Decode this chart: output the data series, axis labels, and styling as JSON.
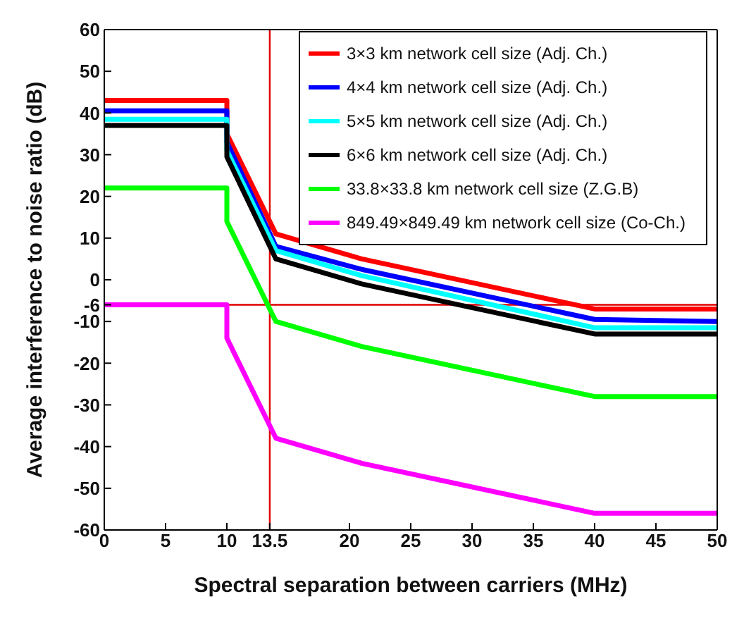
{
  "chart_data": {
    "type": "line",
    "xlabel": "Spectral separation between carriers (MHz)",
    "ylabel": "Average interference to noise ratio (dB)",
    "xlim": [
      0,
      50
    ],
    "xticks": [
      0,
      5,
      10,
      13.5,
      20,
      25,
      30,
      35,
      40,
      45,
      50
    ],
    "ylim": [
      -60,
      60
    ],
    "yticks": [
      -60,
      -50,
      -40,
      -30,
      -20,
      -10,
      -6,
      0,
      10,
      20,
      30,
      40,
      50,
      60
    ],
    "grid": false,
    "legend": "top right",
    "marker": "none",
    "line_style": "solid",
    "ref_lines": [
      {
        "axis": "x",
        "value": 13.5,
        "color": "#e00000"
      },
      {
        "axis": "y",
        "value": -6,
        "color": "#e00000"
      }
    ],
    "series": [
      {
        "name": "3×3 km network cell size (Adj. Ch.)",
        "color": "#ff0000",
        "x": [
          0,
          10,
          10,
          14,
          21,
          40,
          50
        ],
        "values": [
          43,
          43,
          35,
          11,
          5,
          -7,
          -7
        ]
      },
      {
        "name": "4×4 km network cell size (Adj. Ch.)",
        "color": "#0000ff",
        "x": [
          0,
          10,
          10,
          14,
          21,
          40,
          50
        ],
        "values": [
          40.5,
          40.5,
          33,
          8,
          2.5,
          -9.5,
          -10
        ]
      },
      {
        "name": "5×5 km network cell size (Adj. Ch.)",
        "color": "#00ffff",
        "x": [
          0,
          10,
          10,
          14,
          21,
          40,
          50
        ],
        "values": [
          38.5,
          38.5,
          31,
          7,
          1,
          -11.5,
          -11.5
        ]
      },
      {
        "name": "6×6 km network cell size (Adj. Ch.)",
        "color": "#000000",
        "x": [
          0,
          10,
          10,
          14,
          21,
          40,
          50
        ],
        "values": [
          37,
          37,
          29.5,
          5,
          -1,
          -13,
          -13
        ]
      },
      {
        "name": "33.8×33.8 km network cell size (Z.G.B)",
        "color": "#00ff00",
        "x": [
          0,
          10,
          10,
          14,
          21,
          40,
          50
        ],
        "values": [
          22,
          22,
          14,
          -10,
          -16,
          -28,
          -28
        ]
      },
      {
        "name": "849.49×849.49 km network cell size (Co-Ch.)",
        "color": "#ff00ff",
        "x": [
          0,
          10,
          10,
          14,
          21,
          40,
          50
        ],
        "values": [
          -6,
          -6,
          -14,
          -38,
          -44,
          -56,
          -56
        ]
      }
    ]
  }
}
